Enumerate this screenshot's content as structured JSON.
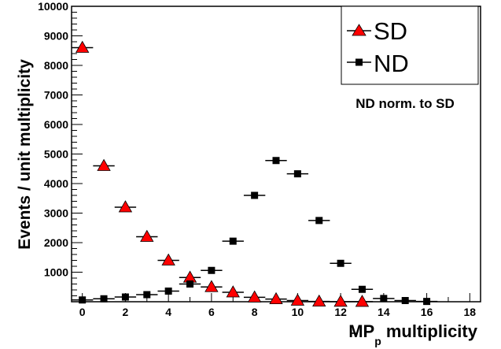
{
  "chart_data": {
    "type": "scatter",
    "title": "",
    "xlabel": "MP",
    "xlabel_sub": "p",
    "xlabel_rest": " multiplicity",
    "ylabel": "Events / unit multiplicity",
    "xlim": [
      -0.5,
      18.5
    ],
    "ylim": [
      0,
      10000
    ],
    "x_ticks": [
      0,
      2,
      4,
      6,
      8,
      10,
      12,
      14,
      16,
      18
    ],
    "x_tick_labels": [
      "0",
      "2",
      "4",
      "6",
      "8",
      "10",
      "12",
      "14",
      "16",
      "18"
    ],
    "y_ticks": [
      1000,
      2000,
      3000,
      4000,
      5000,
      6000,
      7000,
      8000,
      9000,
      10000
    ],
    "y_tick_labels": [
      "1000",
      "2000",
      "3000",
      "4000",
      "5000",
      "6000",
      "7000",
      "8000",
      "9000",
      "10000"
    ],
    "grid": false,
    "legend_position": "top-right",
    "annotation": "ND norm. to SD",
    "series": [
      {
        "name": "SD",
        "marker": "triangle",
        "color": "#ff0000",
        "x": [
          0,
          1,
          2,
          3,
          4,
          5,
          6,
          7,
          8,
          9,
          10,
          11,
          12,
          13
        ],
        "y": [
          8600,
          4600,
          3200,
          2200,
          1400,
          820,
          500,
          320,
          150,
          90,
          40,
          10,
          5,
          2
        ],
        "x_error": 0.5
      },
      {
        "name": "ND",
        "marker": "square",
        "color": "#000000",
        "x": [
          0,
          1,
          2,
          3,
          4,
          5,
          6,
          7,
          8,
          9,
          10,
          11,
          12,
          13,
          14,
          15,
          16
        ],
        "y": [
          60,
          100,
          160,
          240,
          360,
          600,
          1060,
          2050,
          3600,
          4780,
          4330,
          2750,
          1300,
          420,
          110,
          40,
          10
        ],
        "x_error": 0.5
      }
    ]
  }
}
